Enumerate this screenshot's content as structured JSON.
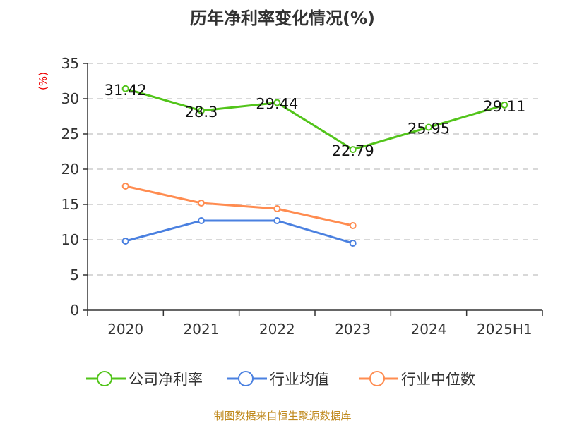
{
  "chart_data": {
    "type": "line",
    "title": "历年净利率变化情况(%)",
    "ylabel": "(%)",
    "xlabel": "",
    "categories": [
      "2020",
      "2021",
      "2022",
      "2023",
      "2024",
      "2025H1"
    ],
    "ylim": [
      0,
      35
    ],
    "yticks": [
      0,
      5,
      10,
      15,
      20,
      25,
      30,
      35
    ],
    "grid": true,
    "legend_position": "bottom",
    "series": [
      {
        "name": "公司净利率",
        "color": "#52c41a",
        "values": [
          31.42,
          28.3,
          29.44,
          22.79,
          25.95,
          29.11
        ],
        "labels": [
          "31.42",
          "28.3",
          "29.44",
          "22.79",
          "25.95",
          "29.11"
        ]
      },
      {
        "name": "行业均值",
        "color": "#4a80e0",
        "values": [
          9.8,
          12.7,
          12.7,
          9.5,
          null,
          null
        ]
      },
      {
        "name": "行业中位数",
        "color": "#ff8c50",
        "values": [
          17.6,
          15.2,
          14.4,
          12.0,
          null,
          null
        ]
      }
    ]
  },
  "source": "制图数据来自恒生聚源数据库"
}
